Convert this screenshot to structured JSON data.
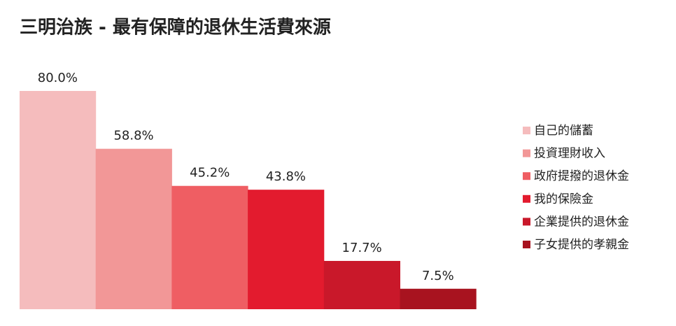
{
  "chart_data": {
    "type": "bar",
    "title": "三明治族 - 最有保障的退休生活費來源",
    "categories": [
      "自己的儲蓄",
      "投資理財收入",
      "政府提撥的退休金",
      "我的保險金",
      "企業提供的退休金",
      "子女提供的孝親金"
    ],
    "values": [
      80.0,
      58.8,
      45.2,
      43.8,
      17.7,
      7.5
    ],
    "value_labels": [
      "80.0%",
      "58.8%",
      "45.2%",
      "43.8%",
      "17.7%",
      "7.5%"
    ],
    "colors": [
      "#f5bcbd",
      "#f29797",
      "#ef5e63",
      "#e31b2e",
      "#c9182a",
      "#a8131f"
    ],
    "legend": "right"
  }
}
